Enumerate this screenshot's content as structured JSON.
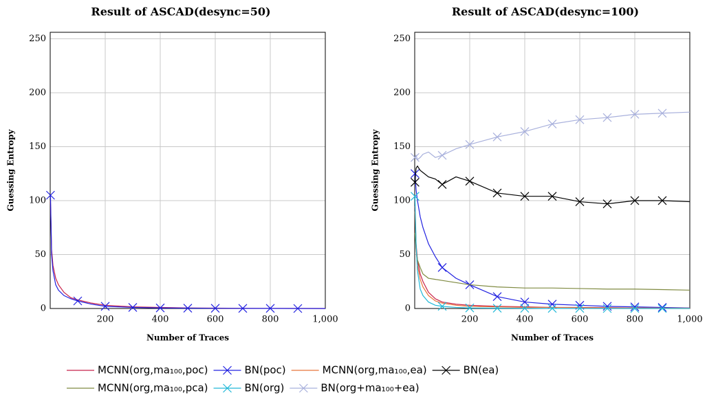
{
  "chart_data": [
    {
      "type": "line",
      "title": "Result of ASCAD(desync=50)",
      "xlabel": "Number of Traces",
      "ylabel": "Guessing Entropy",
      "x": [
        1,
        5,
        10,
        20,
        30,
        50,
        75,
        100,
        150,
        200,
        300,
        400,
        500,
        600,
        700,
        800,
        900,
        1000
      ],
      "xlim": [
        0,
        1000
      ],
      "ylim": [
        0,
        256
      ],
      "xticks": [
        200,
        400,
        600,
        800,
        {
          "value": 1000,
          "label": "1,000"
        }
      ],
      "yticks": [
        0,
        50,
        100,
        150,
        200,
        250
      ],
      "grid": true,
      "series": [
        {
          "name": "MCNN(org,ma₁₀₀,poc)",
          "color": "#c8224a",
          "marker": false,
          "values": [
            100,
            55,
            40,
            28,
            22,
            15,
            10,
            8,
            5,
            3,
            1.5,
            1,
            0.5,
            0.3,
            0.2,
            0.1,
            0.1,
            0
          ]
        },
        {
          "name": "BN(poc)",
          "color": "#2020e0",
          "marker": true,
          "values": [
            105,
            50,
            35,
            22,
            17,
            12,
            9,
            7,
            4,
            2,
            1,
            0.5,
            0.3,
            0.2,
            0.1,
            0.1,
            0,
            0
          ]
        }
      ]
    },
    {
      "type": "line",
      "title": "Result of ASCAD(desync=100)",
      "xlabel": "Number of Traces",
      "ylabel": "Guessing Entropy",
      "x": [
        1,
        5,
        10,
        20,
        30,
        50,
        75,
        100,
        150,
        200,
        300,
        400,
        500,
        600,
        700,
        800,
        900,
        1000
      ],
      "xlim": [
        0,
        1000
      ],
      "ylim": [
        0,
        256
      ],
      "xticks": [
        200,
        400,
        600,
        800,
        {
          "value": 1000,
          "label": "1,000"
        }
      ],
      "yticks": [
        0,
        50,
        100,
        150,
        200,
        250
      ],
      "grid": true,
      "series": [
        {
          "name": "MCNN(org,ma₁₀₀,poc)",
          "color": "#c8224a",
          "marker": false,
          "values": [
            95,
            60,
            45,
            32,
            25,
            15,
            9,
            6,
            4,
            3,
            2,
            1.5,
            1,
            1,
            0.8,
            0.5,
            0.4,
            0.3
          ]
        },
        {
          "name": "BN(poc)",
          "color": "#2020e0",
          "marker": true,
          "values": [
            125,
            110,
            100,
            85,
            75,
            60,
            48,
            38,
            28,
            22,
            11,
            6,
            4,
            3,
            2,
            1.5,
            1,
            0.5
          ]
        },
        {
          "name": "MCNN(org,ma₁₀₀,ea)",
          "color": "#e8743b",
          "marker": false,
          "values": [
            90,
            55,
            40,
            27,
            20,
            12,
            7,
            5,
            3,
            2,
            1.5,
            1,
            1,
            0.8,
            0.5,
            0.5,
            0.3,
            0.3
          ]
        },
        {
          "name": "BN(ea)",
          "color": "#000000",
          "marker": true,
          "values": [
            117,
            130,
            132,
            128,
            126,
            122,
            120,
            115,
            122,
            118,
            107,
            104,
            104,
            99,
            97,
            100,
            100,
            99
          ]
        },
        {
          "name": "MCNN(org,ma₁₀₀,pca)",
          "color": "#7f8a40",
          "marker": false,
          "values": [
            70,
            55,
            45,
            38,
            32,
            28,
            27,
            26,
            24,
            22,
            20,
            19,
            19,
            18.5,
            18,
            18,
            17.5,
            17
          ]
        },
        {
          "name": "BN(org)",
          "color": "#20b8d8",
          "marker": true,
          "values": [
            104,
            60,
            35,
            18,
            12,
            6,
            3,
            2,
            1,
            0.5,
            0.3,
            0.2,
            0.1,
            0.1,
            0,
            0,
            0,
            0
          ]
        },
        {
          "name": "BN(org+ma₁₀₀+ea)",
          "color": "#a8b0dc",
          "marker": true,
          "values": [
            140,
            142,
            138,
            140,
            143,
            145,
            140,
            142,
            148,
            152,
            159,
            164,
            171,
            175,
            177,
            180,
            181,
            182
          ]
        }
      ]
    }
  ]
}
